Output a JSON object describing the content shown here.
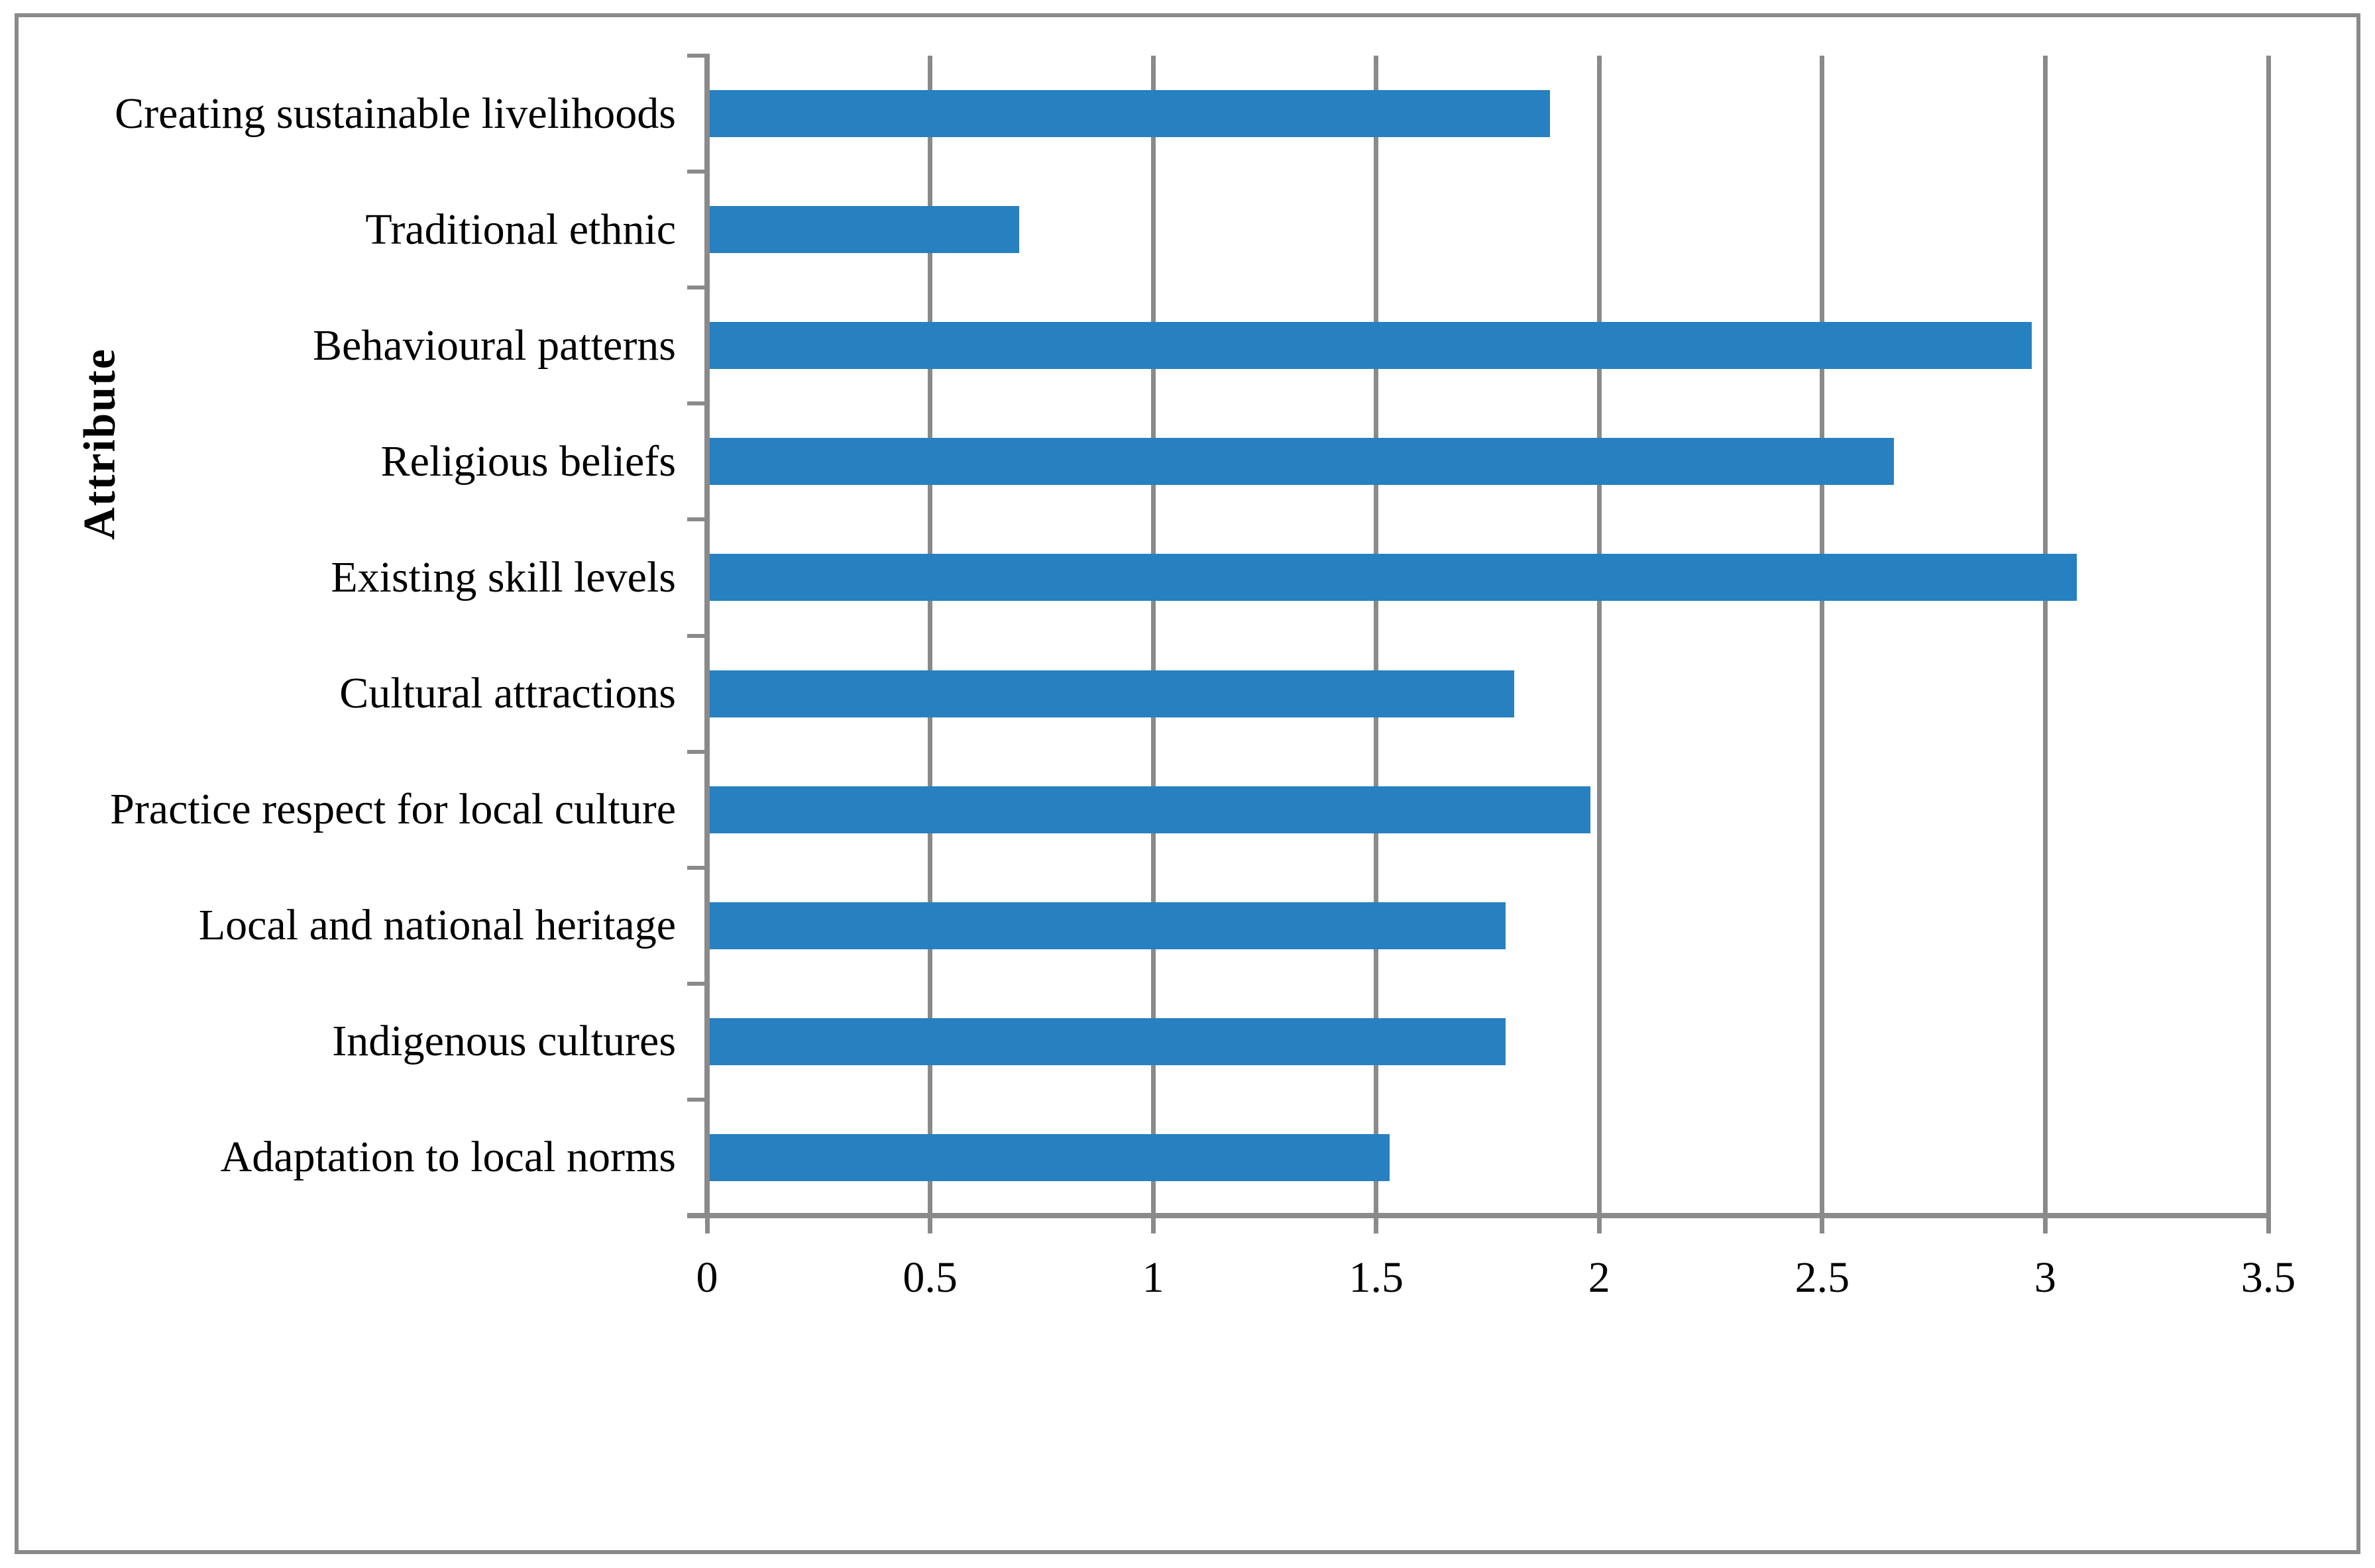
{
  "figure": {
    "kind": "horizontal bar chart figure",
    "background": "#ffffff",
    "border_color": "#8a8a8a"
  },
  "chart_data": {
    "type": "bar",
    "orientation": "horizontal",
    "title": "",
    "xlabel": "",
    "ylabel": "Attribute",
    "categories": [
      "Creating sustainable livelihoods",
      "Traditional ethnic",
      "Behavioural patterns",
      "Religious beliefs",
      "Existing skill levels",
      "Cultural attractions",
      "Practice respect for local culture",
      "Local and national heritage",
      "Indigenous cultures",
      "Adaptation to local norms"
    ],
    "values": [
      1.89,
      0.7,
      2.97,
      2.66,
      3.07,
      1.81,
      1.98,
      1.79,
      1.79,
      1.53
    ],
    "xlim": [
      0,
      3.5
    ],
    "xtick_step": 0.5,
    "xtick_labels": [
      "0",
      "0.5",
      "1",
      "1.5",
      "2",
      "2.5",
      "3",
      "3.5"
    ],
    "grid": "vertical gridlines at every x tick",
    "legend": "none",
    "bar_color": "#2780c0",
    "grid_color": "#8a8a8a",
    "axis_color": "#8a8a8a"
  }
}
